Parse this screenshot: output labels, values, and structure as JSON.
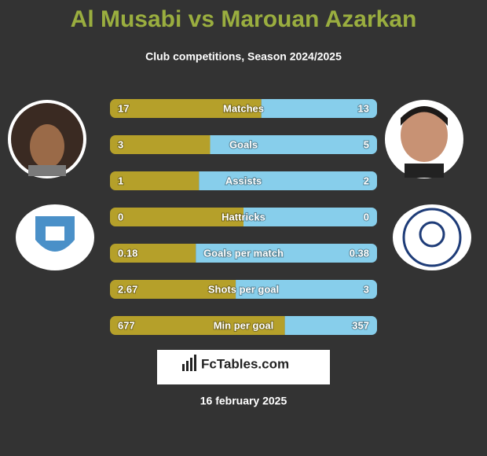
{
  "header": {
    "title": "Al Musabi vs Marouan Azarkan",
    "subtitle": "Club competitions, Season 2024/2025"
  },
  "colors": {
    "left": "#b5a02a",
    "right": "#87ceeb",
    "title": "#9aae3f"
  },
  "rows": [
    {
      "label": "Matches",
      "left": 17,
      "right": 13
    },
    {
      "label": "Goals",
      "left": 3,
      "right": 5
    },
    {
      "label": "Assists",
      "left": 1,
      "right": 2
    },
    {
      "label": "Hattricks",
      "left": 0,
      "right": 0
    },
    {
      "label": "Goals per match",
      "left": 0.18,
      "right": 0.38
    },
    {
      "label": "Shots per goal",
      "left": 2.67,
      "right": 3
    },
    {
      "label": "Min per goal",
      "left": 677,
      "right": 357
    }
  ],
  "logo": {
    "text": "FcTables.com"
  },
  "footer": {
    "date": "16 february 2025"
  }
}
